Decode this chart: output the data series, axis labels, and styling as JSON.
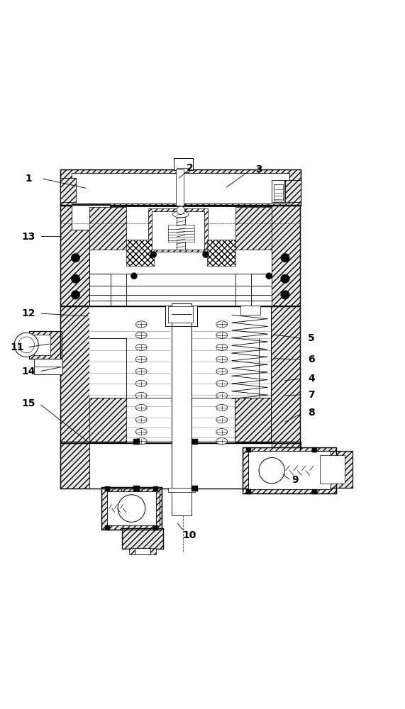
{
  "fig_width": 5.71,
  "fig_height": 10.0,
  "dpi": 100,
  "bg_color": "#ffffff",
  "lc": "#000000",
  "annotations": {
    "1": {
      "label": [
        0.068,
        0.937
      ],
      "line": [
        [
          0.1,
          0.937
        ],
        [
          0.215,
          0.912
        ]
      ]
    },
    "2": {
      "label": [
        0.468,
        0.963
      ],
      "line": [
        [
          0.468,
          0.96
        ],
        [
          0.438,
          0.935
        ]
      ]
    },
    "3": {
      "label": [
        0.64,
        0.96
      ],
      "line": [
        [
          0.615,
          0.955
        ],
        [
          0.555,
          0.912
        ]
      ]
    },
    "4": {
      "label": [
        0.77,
        0.44
      ],
      "line": [
        [
          0.748,
          0.44
        ],
        [
          0.7,
          0.435
        ]
      ]
    },
    "5": {
      "label": [
        0.77,
        0.54
      ],
      "line": [
        [
          0.748,
          0.54
        ],
        [
          0.67,
          0.55
        ]
      ]
    },
    "6": {
      "label": [
        0.77,
        0.488
      ],
      "line": [
        [
          0.748,
          0.488
        ],
        [
          0.672,
          0.49
        ]
      ]
    },
    "7": {
      "label": [
        0.77,
        0.4
      ],
      "line": [
        [
          0.748,
          0.4
        ],
        [
          0.7,
          0.398
        ]
      ]
    },
    "8": {
      "label": [
        0.77,
        0.355
      ],
      "line": [
        [
          0.748,
          0.355
        ],
        [
          0.7,
          0.33
        ]
      ]
    },
    "9": {
      "label": [
        0.73,
        0.188
      ],
      "line": [
        [
          0.72,
          0.188
        ],
        [
          0.695,
          0.205
        ]
      ]
    },
    "10": {
      "label": [
        0.468,
        0.052
      ],
      "line": [
        [
          0.455,
          0.06
        ],
        [
          0.435,
          0.085
        ]
      ]
    },
    "11": {
      "label": [
        0.04,
        0.518
      ],
      "line": [
        [
          0.065,
          0.518
        ],
        [
          0.125,
          0.527
        ]
      ]
    },
    "12": {
      "label": [
        0.068,
        0.602
      ],
      "line": [
        [
          0.095,
          0.602
        ],
        [
          0.22,
          0.595
        ]
      ]
    },
    "13": {
      "label": [
        0.068,
        0.793
      ],
      "line": [
        [
          0.095,
          0.793
        ],
        [
          0.155,
          0.793
        ]
      ]
    },
    "14": {
      "label": [
        0.068,
        0.458
      ],
      "line": [
        [
          0.095,
          0.458
        ],
        [
          0.155,
          0.47
        ]
      ]
    },
    "15": {
      "label": [
        0.068,
        0.378
      ],
      "line": [
        [
          0.095,
          0.378
        ],
        [
          0.22,
          0.28
        ]
      ]
    }
  },
  "font_size": 10
}
